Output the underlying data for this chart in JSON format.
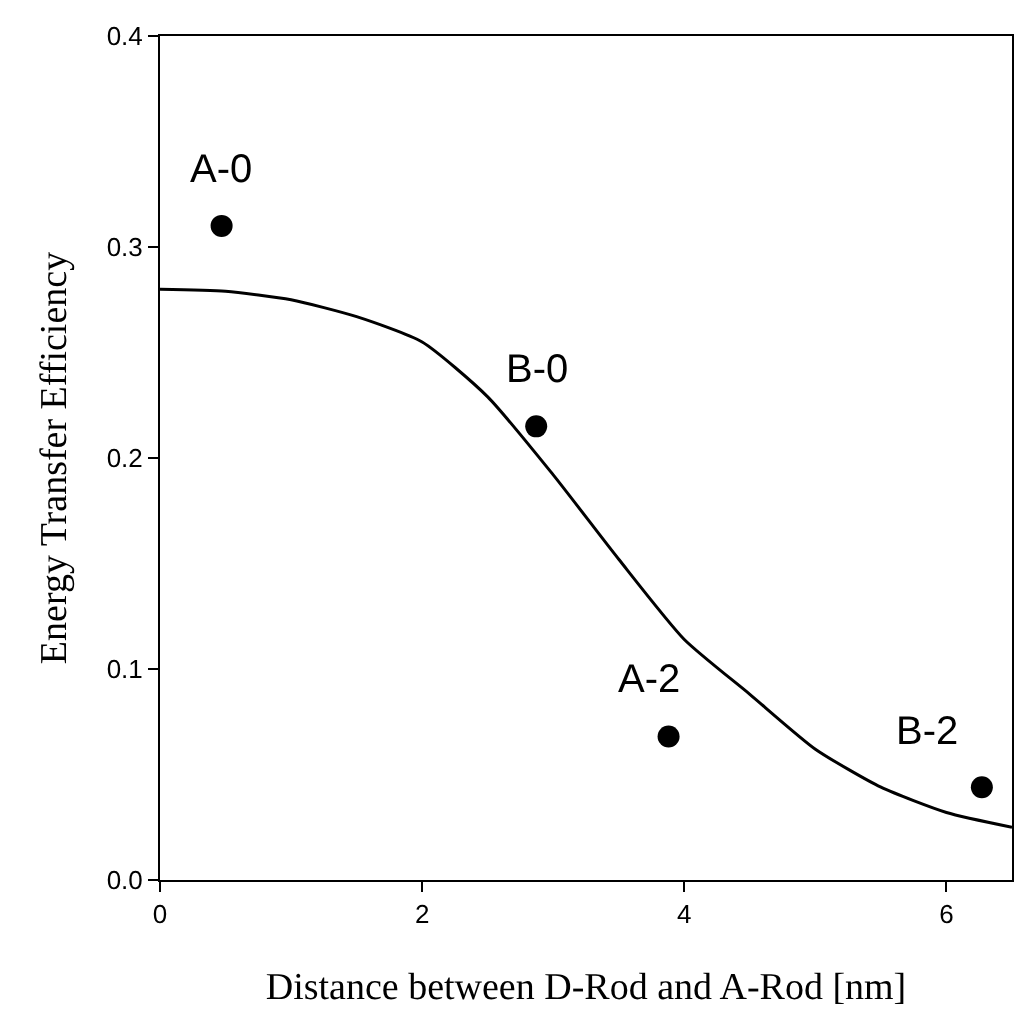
{
  "chart_data": {
    "type": "scatter",
    "xlabel": "Distance between D-Rod and A-Rod [nm]",
    "ylabel": "Energy Transfer Efficiency",
    "xlim": [
      0,
      6.5
    ],
    "xticks": [
      0,
      2,
      4,
      6
    ],
    "ylim": [
      0,
      0.4
    ],
    "yticks": [
      {
        "value": 0,
        "label": "0.0"
      },
      0.1,
      0.2,
      0.3,
      0.4
    ],
    "grid": false,
    "marker": "circle",
    "series": [
      {
        "type": "line",
        "color": "#000000",
        "line_style": "solid",
        "marker": "none",
        "x": [
          0,
          0.5,
          1,
          1.5,
          2,
          2.5,
          3,
          3.5,
          4,
          4.5,
          5,
          5.5,
          6,
          6.5
        ],
        "values": [
          0.28,
          0.279,
          0.275,
          0.267,
          0.255,
          0.229,
          0.192,
          0.152,
          0.114,
          0.088,
          0.062,
          0.044,
          0.032,
          0.025
        ]
      },
      {
        "color": "#000000",
        "x": [
          0.47,
          2.87,
          3.88,
          6.27
        ],
        "values": [
          0.31,
          0.215,
          0.068,
          0.044
        ]
      }
    ],
    "annotations": [
      {
        "text": "A-0",
        "x": 0.47,
        "y": 0.31
      },
      {
        "text": "B-0",
        "x": 2.87,
        "y": 0.215
      },
      {
        "text": "A-2",
        "x": 3.88,
        "y": 0.068
      },
      {
        "text": "B-2",
        "x": 6.27,
        "y": 0.044
      }
    ]
  }
}
